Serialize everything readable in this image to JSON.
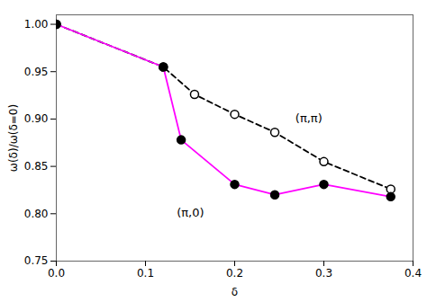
{
  "chart_data": {
    "type": "line",
    "xlabel": "δ",
    "ylabel": "ω(δ)/ω(δ=0)",
    "series": [
      {
        "x": [
          0.0,
          0.12,
          0.155,
          0.2,
          0.245,
          0.3,
          0.375
        ],
        "values": [
          1.0,
          0.955,
          0.926,
          0.905,
          0.886,
          0.855,
          0.826
        ],
        "color": "#000000",
        "line_style": "dashed",
        "marker": "open circle"
      },
      {
        "x": [
          0.0,
          0.12,
          0.14,
          0.2,
          0.245,
          0.3,
          0.375
        ],
        "values": [
          1.0,
          0.955,
          0.878,
          0.831,
          0.82,
          0.831,
          0.818
        ],
        "color": "#FF00FF",
        "line_style": "solid",
        "marker": "circle"
      }
    ],
    "annotations": [
      {
        "text": "(π,0)",
        "x": 0.135,
        "y": 0.797
      },
      {
        "text": "(π,π)",
        "x": 0.268,
        "y": 0.897
      }
    ],
    "xlim": [
      0.0,
      0.4
    ],
    "ylim": [
      0.75,
      1.01
    ],
    "xticks": [
      {
        "value": 0.0,
        "label": "0.0"
      },
      0.1,
      0.2,
      0.3,
      0.4
    ],
    "yticks": [
      0.75,
      {
        "value": 0.8,
        "label": "0.80"
      },
      0.85,
      {
        "value": 0.9,
        "label": "0.90"
      },
      0.95,
      {
        "value": 1.0,
        "label": "1.00"
      }
    ],
    "grid": false
  }
}
